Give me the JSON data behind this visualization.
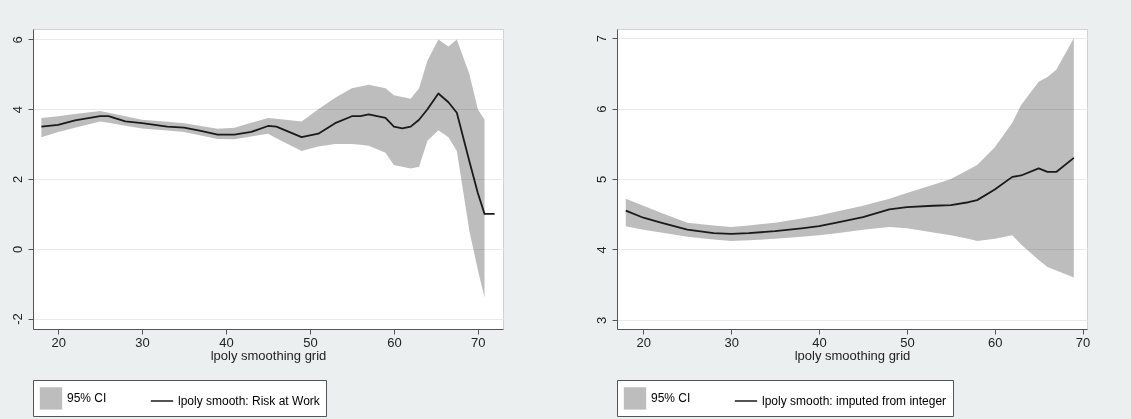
{
  "chart_data": [
    {
      "type": "line",
      "xlabel": "lpoly smoothing grid",
      "xlim": [
        17,
        73
      ],
      "ylim": [
        -2.3,
        6.3
      ],
      "xticks": [
        20,
        30,
        40,
        50,
        60,
        70
      ],
      "yticks": [
        -2,
        0,
        2,
        4,
        6
      ],
      "grid": "y",
      "legend": "bottom",
      "annotations": [
        "95% CI"
      ],
      "series": [
        {
          "name": "lpoly smooth: Risk at Work",
          "color": "#1a1a1a",
          "x": [
            18,
            20,
            22,
            25,
            26,
            28,
            30,
            33,
            35,
            37,
            39,
            41,
            43,
            45,
            46,
            49,
            51,
            53,
            55,
            56,
            57,
            59,
            60,
            61,
            62,
            63,
            64,
            65.3,
            66.5,
            67.5,
            69,
            70,
            70.8,
            72
          ],
          "values": [
            3.5,
            3.55,
            3.68,
            3.8,
            3.8,
            3.65,
            3.6,
            3.5,
            3.47,
            3.38,
            3.27,
            3.27,
            3.35,
            3.52,
            3.5,
            3.2,
            3.3,
            3.6,
            3.8,
            3.8,
            3.85,
            3.75,
            3.5,
            3.45,
            3.5,
            3.7,
            4.0,
            4.45,
            4.2,
            3.9,
            2.5,
            1.6,
            1.0,
            1.0
          ],
          "lower": [
            3.2,
            3.35,
            3.47,
            3.65,
            3.61,
            3.53,
            3.45,
            3.39,
            3.35,
            3.25,
            3.15,
            3.14,
            3.22,
            3.3,
            3.17,
            2.8,
            2.93,
            3.0,
            3.0,
            2.98,
            2.95,
            2.75,
            2.4,
            2.35,
            2.3,
            2.35,
            3.1,
            3.4,
            3.2,
            2.8,
            0.5,
            -0.6,
            -1.4,
            null
          ],
          "upper": [
            3.75,
            3.8,
            3.86,
            3.95,
            3.9,
            3.8,
            3.7,
            3.64,
            3.6,
            3.52,
            3.44,
            3.47,
            3.61,
            3.75,
            3.73,
            3.65,
            4.0,
            4.33,
            4.6,
            4.65,
            4.7,
            4.6,
            4.4,
            4.35,
            4.3,
            4.6,
            5.4,
            6.0,
            5.8,
            6.0,
            5.0,
            4.0,
            3.7,
            null
          ]
        }
      ]
    },
    {
      "type": "line",
      "xlabel": "lpoly smoothing grid",
      "xlim": [
        17,
        70.5
      ],
      "ylim": [
        2.87,
        7.13
      ],
      "xticks": [
        20,
        30,
        40,
        50,
        60,
        70
      ],
      "yticks": [
        3,
        4,
        5,
        6,
        7
      ],
      "grid": "y",
      "legend": "bottom",
      "annotations": [
        "95% CI"
      ],
      "series": [
        {
          "name": "lpoly smooth: imputed from integer",
          "color": "#1a1a1a",
          "x": [
            18,
            20,
            22,
            25,
            28,
            30,
            32,
            35,
            38,
            40,
            42,
            45,
            48,
            50,
            53,
            55,
            57,
            58,
            60,
            62,
            63,
            65,
            66,
            67,
            69
          ],
          "values": [
            4.55,
            4.45,
            4.38,
            4.28,
            4.23,
            4.22,
            4.23,
            4.26,
            4.3,
            4.33,
            4.38,
            4.46,
            4.57,
            4.6,
            4.62,
            4.63,
            4.67,
            4.7,
            4.85,
            5.03,
            5.05,
            5.15,
            5.1,
            5.1,
            5.3
          ],
          "lower": [
            4.33,
            4.28,
            4.24,
            4.18,
            4.14,
            4.12,
            4.13,
            4.15,
            4.18,
            4.2,
            4.23,
            4.28,
            4.32,
            4.3,
            4.24,
            4.2,
            4.15,
            4.12,
            4.15,
            4.2,
            4.07,
            3.85,
            3.75,
            3.7,
            3.6
          ],
          "upper": [
            4.72,
            4.62,
            4.52,
            4.38,
            4.34,
            4.32,
            4.34,
            4.38,
            4.44,
            4.48,
            4.54,
            4.62,
            4.72,
            4.8,
            4.92,
            5.0,
            5.13,
            5.2,
            5.45,
            5.8,
            6.05,
            6.38,
            6.45,
            6.55,
            7.0
          ]
        }
      ]
    }
  ]
}
